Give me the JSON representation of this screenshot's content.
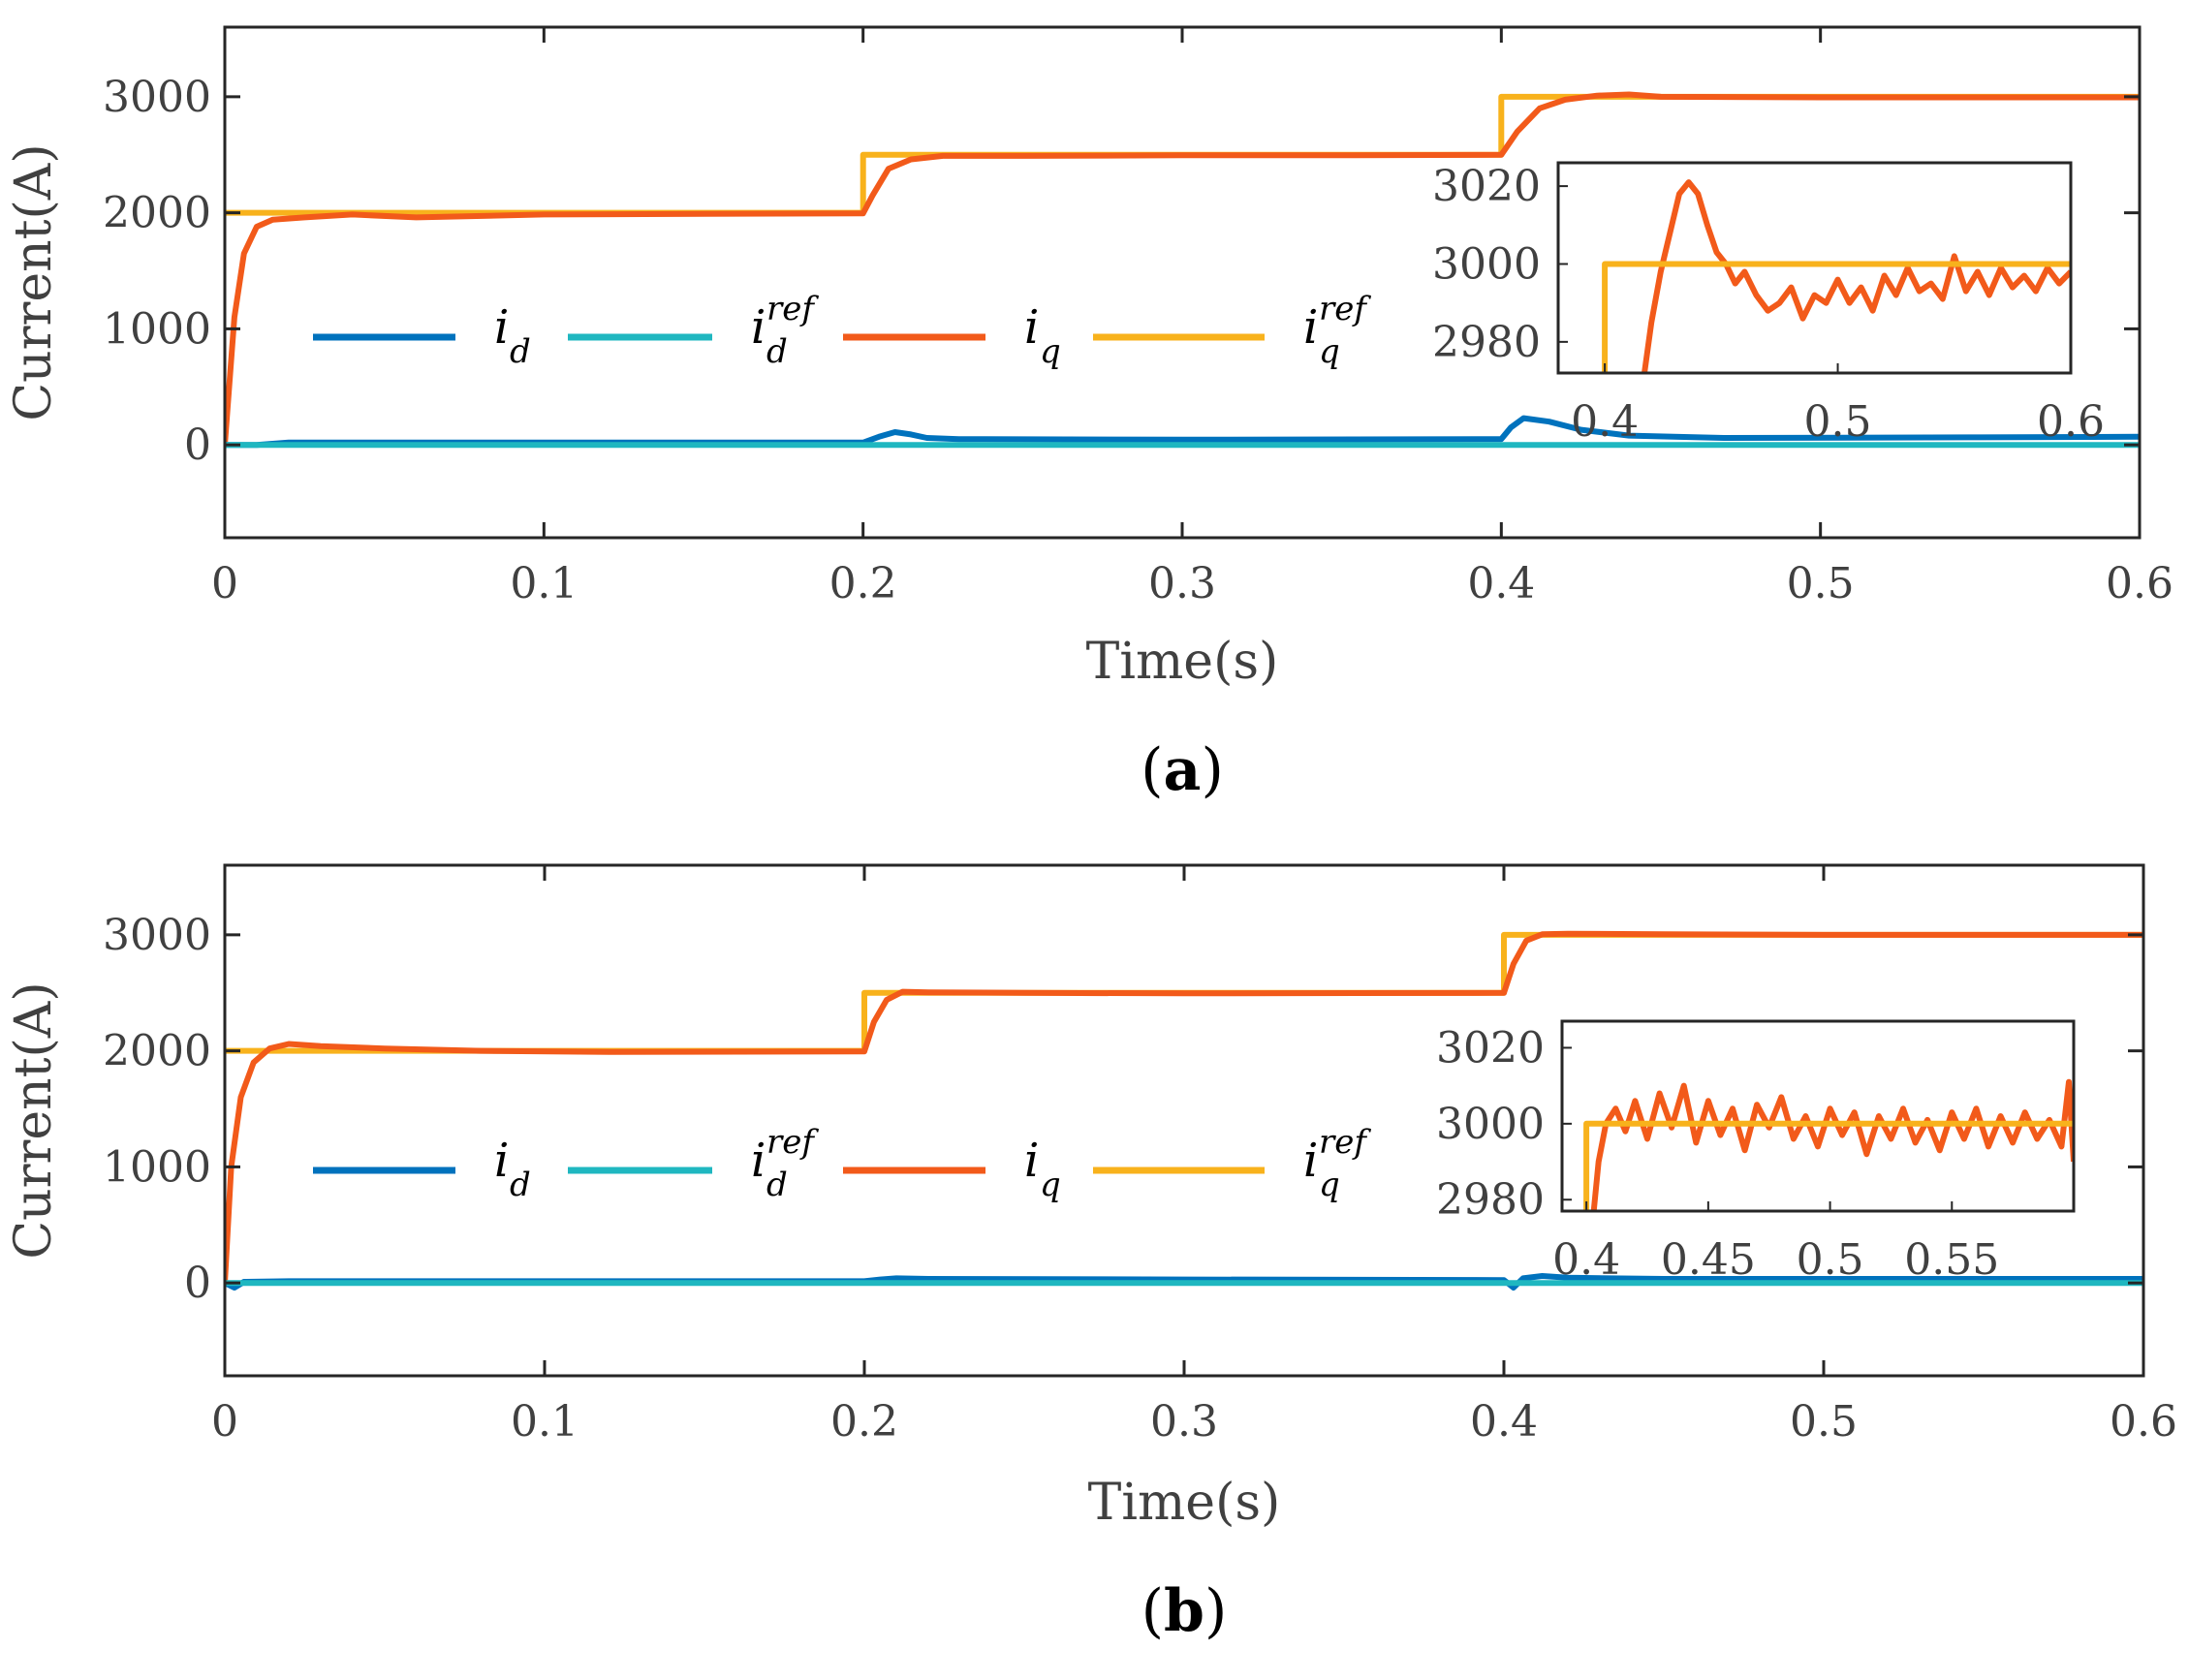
{
  "colors": {
    "id": "#0072BD",
    "id_ref": "#1FB7C0",
    "iq": "#F25A1A",
    "iq_ref": "#F8B21C",
    "axis": "#262626",
    "text": "#404040"
  },
  "chart_data": [
    {
      "type": "line",
      "panel_label": "a",
      "xlabel": "Time(s)",
      "ylabel": "Current(A)",
      "xlim": [
        0,
        0.6
      ],
      "ylim": [
        -800,
        3600
      ],
      "xticks": [
        0,
        0.1,
        0.2,
        0.3,
        0.4,
        0.5,
        0.6
      ],
      "xtick_labels": [
        "0",
        "0.1",
        "0.2",
        "0.3",
        "0.4",
        "0.5",
        "0.6"
      ],
      "yticks": [
        0,
        1000,
        2000,
        3000
      ],
      "ytick_labels": [
        "0",
        "1000",
        "2000",
        "3000"
      ],
      "grid": false,
      "legend_position": "middle-left",
      "legend": [
        {
          "key": "id",
          "base": "i",
          "sub": "d",
          "sup": ""
        },
        {
          "key": "id_ref",
          "base": "i",
          "sub": "d",
          "sup": "ref"
        },
        {
          "key": "iq",
          "base": "i",
          "sub": "q",
          "sup": ""
        },
        {
          "key": "iq_ref",
          "base": "i",
          "sub": "q",
          "sup": "ref"
        }
      ],
      "series": [
        {
          "key": "iq_ref",
          "x": [
            0,
            0.2,
            0.2,
            0.4,
            0.4,
            0.6
          ],
          "y": [
            2000,
            2000,
            2500,
            2500,
            3000,
            3000
          ]
        },
        {
          "key": "iq",
          "x": [
            0,
            0.003,
            0.006,
            0.01,
            0.015,
            0.025,
            0.04,
            0.06,
            0.1,
            0.15,
            0.2,
            0.203,
            0.208,
            0.215,
            0.225,
            0.25,
            0.3,
            0.35,
            0.4,
            0.405,
            0.412,
            0.42,
            0.43,
            0.44,
            0.45,
            0.5,
            0.55,
            0.6
          ],
          "y": [
            0,
            1100,
            1650,
            1880,
            1940,
            1960,
            1985,
            1960,
            1985,
            1990,
            1995,
            2150,
            2380,
            2460,
            2490,
            2490,
            2495,
            2495,
            2500,
            2700,
            2900,
            2975,
            3010,
            3020,
            3000,
            2995,
            2995,
            2995
          ]
        },
        {
          "key": "id",
          "x": [
            0,
            0.01,
            0.02,
            0.1,
            0.2,
            0.205,
            0.21,
            0.215,
            0.22,
            0.23,
            0.3,
            0.4,
            0.403,
            0.407,
            0.415,
            0.425,
            0.44,
            0.47,
            0.55,
            0.6
          ],
          "y": [
            0,
            0,
            20,
            20,
            20,
            70,
            110,
            90,
            60,
            50,
            45,
            50,
            150,
            230,
            200,
            130,
            80,
            60,
            65,
            70
          ]
        },
        {
          "key": "id_ref",
          "x": [
            0,
            0.6
          ],
          "y": [
            0,
            0
          ]
        }
      ],
      "inset": {
        "xlim": [
          0.38,
          0.6
        ],
        "ylim": [
          2972,
          3026
        ],
        "xticks": [
          0.4,
          0.5,
          0.6
        ],
        "xtick_labels": [
          "0.4",
          "0.5",
          "0.6"
        ],
        "yticks": [
          2980,
          3000,
          3020
        ],
        "ytick_labels": [
          "2980",
          "3000",
          "3020"
        ],
        "series": [
          {
            "key": "iq_ref",
            "x": [
              0.4,
              0.4,
              0.6
            ],
            "y": [
              2972,
              3000,
              3000
            ]
          },
          {
            "key": "iq",
            "x": [
              0.417,
              0.42,
              0.424,
              0.428,
              0.432,
              0.436,
              0.44,
              0.444,
              0.448,
              0.452,
              0.456,
              0.46,
              0.465,
              0.47,
              0.475,
              0.48,
              0.485,
              0.49,
              0.495,
              0.5,
              0.505,
              0.51,
              0.515,
              0.52,
              0.525,
              0.53,
              0.535,
              0.54,
              0.545,
              0.55,
              0.555,
              0.56,
              0.565,
              0.57,
              0.575,
              0.58,
              0.585,
              0.59,
              0.595,
              0.6
            ],
            "y": [
              2972,
              2985,
              2998,
              3008,
              3018,
              3021,
              3018,
              3010,
              3003,
              3000,
              2995,
              2998,
              2992,
              2988,
              2990,
              2994,
              2986,
              2992,
              2990,
              2996,
              2990,
              2994,
              2988,
              2997,
              2992,
              2999,
              2993,
              2995,
              2991,
              3002,
              2993,
              2998,
              2992,
              2999,
              2994,
              2997,
              2993,
              2999,
              2995,
              2998
            ]
          }
        ]
      }
    },
    {
      "type": "line",
      "panel_label": "b",
      "xlabel": "Time(s)",
      "ylabel": "Current(A)",
      "xlim": [
        0,
        0.6
      ],
      "ylim": [
        -800,
        3600
      ],
      "xticks": [
        0,
        0.1,
        0.2,
        0.3,
        0.4,
        0.5,
        0.6
      ],
      "xtick_labels": [
        "0",
        "0.1",
        "0.2",
        "0.3",
        "0.4",
        "0.5",
        "0.6"
      ],
      "yticks": [
        0,
        1000,
        2000,
        3000
      ],
      "ytick_labels": [
        "0",
        "1000",
        "2000",
        "3000"
      ],
      "grid": false,
      "legend_position": "middle-left",
      "legend": [
        {
          "key": "id",
          "base": "i",
          "sub": "d",
          "sup": ""
        },
        {
          "key": "id_ref",
          "base": "i",
          "sub": "d",
          "sup": "ref"
        },
        {
          "key": "iq",
          "base": "i",
          "sub": "q",
          "sup": ""
        },
        {
          "key": "iq_ref",
          "base": "i",
          "sub": "q",
          "sup": "ref"
        }
      ],
      "series": [
        {
          "key": "iq_ref",
          "x": [
            0,
            0.2,
            0.2,
            0.4,
            0.4,
            0.6
          ],
          "y": [
            2000,
            2000,
            2500,
            2500,
            3000,
            3000
          ]
        },
        {
          "key": "iq",
          "x": [
            0,
            0.002,
            0.005,
            0.009,
            0.014,
            0.02,
            0.03,
            0.05,
            0.08,
            0.12,
            0.2,
            0.203,
            0.207,
            0.212,
            0.22,
            0.25,
            0.3,
            0.4,
            0.403,
            0.407,
            0.412,
            0.42,
            0.45,
            0.5,
            0.6
          ],
          "y": [
            0,
            1000,
            1600,
            1900,
            2020,
            2060,
            2040,
            2020,
            2000,
            1990,
            1995,
            2250,
            2440,
            2510,
            2505,
            2500,
            2495,
            2500,
            2750,
            2950,
            3005,
            3010,
            3005,
            3000,
            3000
          ]
        },
        {
          "key": "id",
          "x": [
            0,
            0.003,
            0.006,
            0.02,
            0.2,
            0.205,
            0.21,
            0.22,
            0.3,
            0.4,
            0.403,
            0.406,
            0.412,
            0.42,
            0.45,
            0.5,
            0.6
          ],
          "y": [
            0,
            -40,
            10,
            15,
            15,
            30,
            40,
            35,
            30,
            25,
            -40,
            40,
            60,
            45,
            35,
            35,
            35
          ]
        },
        {
          "key": "id_ref",
          "x": [
            0,
            0.6
          ],
          "y": [
            0,
            0
          ]
        }
      ],
      "inset": {
        "xlim": [
          0.39,
          0.6
        ],
        "ylim": [
          2977,
          3027
        ],
        "xticks": [
          0.4,
          0.45,
          0.5,
          0.55
        ],
        "xtick_labels": [
          "0.4",
          "0.45",
          "0.5",
          "0.55"
        ],
        "yticks": [
          2980,
          3000,
          3020
        ],
        "ytick_labels": [
          "2980",
          "3000",
          "3020"
        ],
        "series": [
          {
            "key": "iq_ref",
            "x": [
              0.4,
              0.4,
              0.6
            ],
            "y": [
              2977,
              3000,
              3000
            ]
          },
          {
            "key": "iq",
            "x": [
              0.403,
              0.405,
              0.408,
              0.412,
              0.416,
              0.42,
              0.425,
              0.43,
              0.435,
              0.44,
              0.445,
              0.45,
              0.455,
              0.46,
              0.465,
              0.47,
              0.475,
              0.48,
              0.485,
              0.49,
              0.495,
              0.5,
              0.505,
              0.51,
              0.515,
              0.52,
              0.525,
              0.53,
              0.535,
              0.54,
              0.545,
              0.55,
              0.555,
              0.56,
              0.565,
              0.57,
              0.575,
              0.58,
              0.585,
              0.59,
              0.595,
              0.598,
              0.6
            ],
            "y": [
              2977,
              2990,
              3000,
              3004,
              2998,
              3006,
              2996,
              3008,
              2999,
              3010,
              2995,
              3006,
              2997,
              3004,
              2993,
              3005,
              2999,
              3007,
              2996,
              3002,
              2994,
              3004,
              2997,
              3003,
              2992,
              3002,
              2996,
              3004,
              2995,
              3001,
              2993,
              3003,
              2996,
              3004,
              2994,
              3002,
              2995,
              3003,
              2996,
              3001,
              2994,
              3011,
              2990
            ]
          }
        ]
      }
    }
  ]
}
